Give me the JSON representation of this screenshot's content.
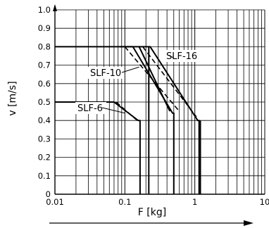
{
  "chart_data": {
    "type": "line",
    "xlabel": "F [kg]",
    "ylabel": "v [m/s]",
    "x_scale": "log",
    "xlim": [
      0.01,
      10
    ],
    "ylim": [
      0,
      1.0
    ],
    "grid": true,
    "x_tick_labels": [
      "0.01",
      "0.1",
      "1",
      "10"
    ],
    "y_tick_labels": [
      "0",
      "0.1",
      "0.2",
      "0.3",
      "0.4",
      "0.5",
      "0.6",
      "0.7",
      "0.8",
      "0.9",
      "1.0"
    ],
    "series": [
      {
        "name": "SLF-6",
        "style": "solid",
        "x": [
          0.01,
          0.07,
          0.155,
          0.165,
          0.165
        ],
        "y": [
          0.5,
          0.5,
          0.4,
          0.4,
          0
        ]
      },
      {
        "name": "SLF-6",
        "style": "dashed",
        "x": [
          0.075,
          0.15
        ],
        "y": [
          0.5,
          0.4
        ]
      },
      {
        "name": "SLF-10",
        "style": "solid",
        "x": [
          0.01,
          0.13,
          0.48,
          0.5,
          0.5
        ],
        "y": [
          0.8,
          0.8,
          0.44,
          0.44,
          0
        ]
      },
      {
        "name": "SLF-10",
        "style": "dashed",
        "x": [
          0.1,
          0.6
        ],
        "y": [
          0.8,
          0.45
        ]
      },
      {
        "name": "SLF-16",
        "style": "solid",
        "x": [
          0.085,
          0.23,
          1.1,
          1.15,
          1.15
        ],
        "y": [
          0.8,
          0.8,
          0.4,
          0.4,
          0
        ]
      },
      {
        "name": "SLF-16",
        "style": "dashed",
        "x": [
          0.18,
          1.05
        ],
        "y": [
          0.8,
          0.42
        ]
      }
    ],
    "extra_lines": [
      {
        "style": "solid",
        "x": [
          0.16,
          0.44
        ],
        "y": [
          0.8,
          0.45
        ]
      },
      {
        "style": "solid",
        "x": [
          0.22,
          0.22
        ],
        "y": [
          0.8,
          0
        ]
      },
      {
        "style": "solid",
        "x": [
          1.2,
          1.2
        ],
        "y": [
          0.4,
          0
        ]
      }
    ],
    "annotations": [
      {
        "text": "SLF-16",
        "target_x": 0.5,
        "target_y": 0.74
      },
      {
        "text": "SLF-10",
        "target_x": 0.16,
        "target_y": 0.69
      },
      {
        "text": "SLF-6",
        "target_x": 0.1,
        "target_y": 0.44
      }
    ]
  }
}
